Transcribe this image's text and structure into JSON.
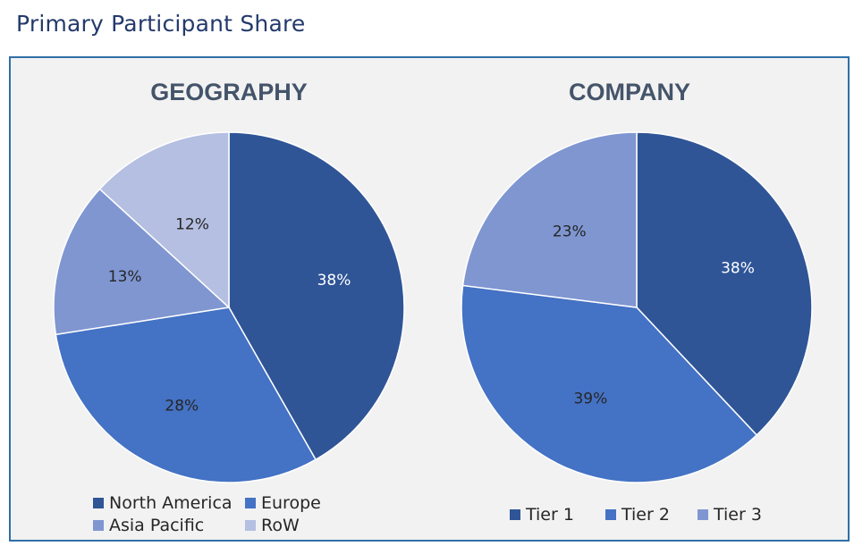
{
  "page_title": "Primary Participant Share",
  "colors": {
    "dark_blue": "#2f5597",
    "medium_blue": "#4472c4",
    "light_blue": "#7f96d1",
    "pale_blue": "#b4bfe2",
    "panel_border": "#2f6fa8",
    "panel_bg": "#f2f2f2"
  },
  "chart_data": [
    {
      "type": "pie",
      "title": "GEOGRAPHY",
      "legend_position": "bottom",
      "slices": [
        {
          "label": "North America",
          "value": 38,
          "display": "38%",
          "color": "#2f5597"
        },
        {
          "label": "Europe",
          "value": 28,
          "display": "28%",
          "color": "#4472c4"
        },
        {
          "label": "Asia Pacific",
          "value": 13,
          "display": "13%",
          "color": "#7f96d1"
        },
        {
          "label": "RoW",
          "value": 12,
          "display": "12%",
          "color": "#b4bfe2"
        }
      ]
    },
    {
      "type": "pie",
      "title": "COMPANY",
      "legend_position": "bottom",
      "slices": [
        {
          "label": "Tier 1",
          "value": 38,
          "display": "38%",
          "color": "#2f5597"
        },
        {
          "label": "Tier 2",
          "value": 39,
          "display": "39%",
          "color": "#4472c4"
        },
        {
          "label": "Tier 3",
          "value": 23,
          "display": "23%",
          "color": "#7f96d1"
        }
      ]
    }
  ]
}
